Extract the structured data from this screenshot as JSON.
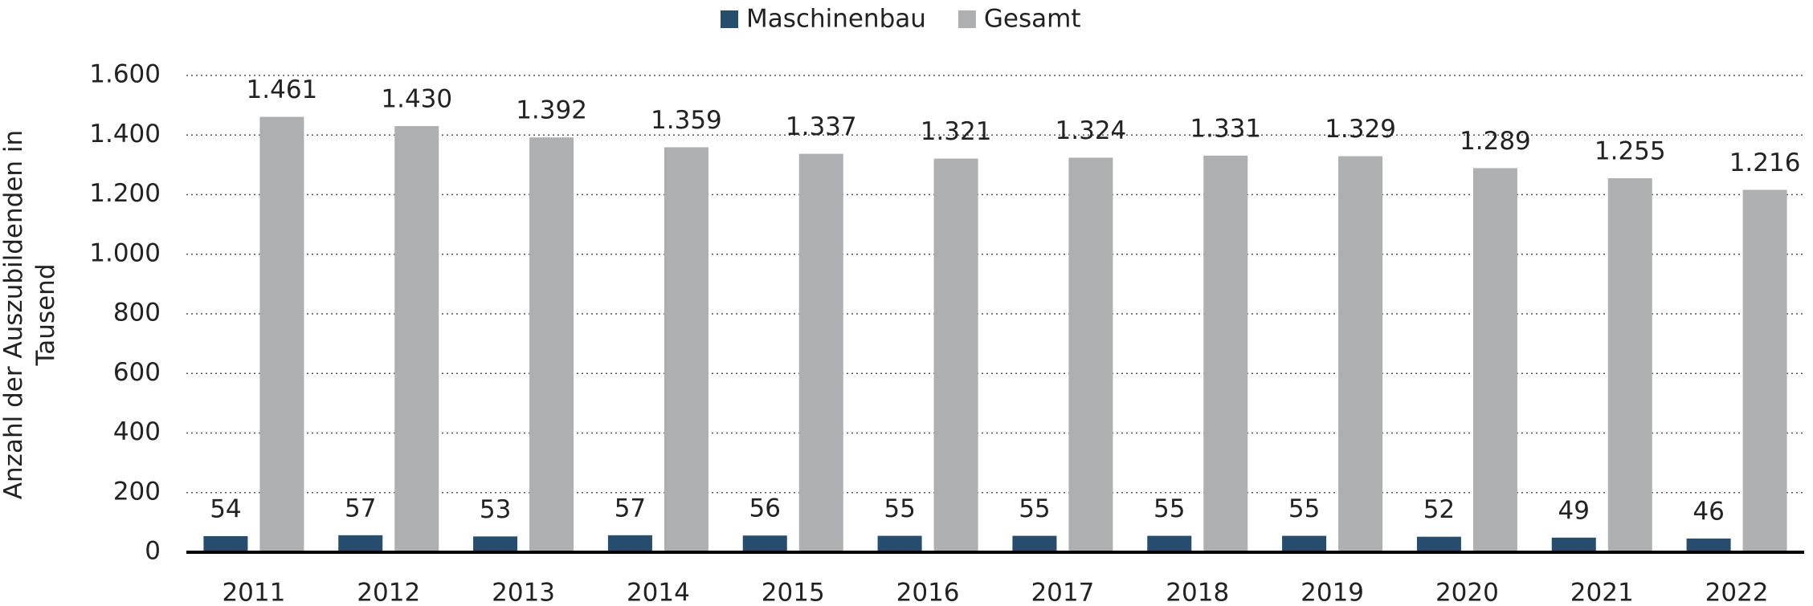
{
  "chart_data": {
    "type": "bar",
    "y_label": "Anzahl der Auszubildenden in Tausend",
    "categories": [
      "2011",
      "2012",
      "2013",
      "2014",
      "2015",
      "2016",
      "2017",
      "2018",
      "2019",
      "2020",
      "2021",
      "2022"
    ],
    "series": [
      {
        "name": "Maschinenbau",
        "color": "#264c6e",
        "values": [
          54,
          57,
          53,
          57,
          56,
          55,
          55,
          55,
          55,
          52,
          49,
          46
        ]
      },
      {
        "name": "Gesamt",
        "color": "#adafb0",
        "values": [
          1461,
          1430,
          1392,
          1359,
          1337,
          1321,
          1324,
          1331,
          1329,
          1289,
          1255,
          1216
        ],
        "value_labels": [
          "1.461",
          "1.430",
          "1.392",
          "1.359",
          "1.337",
          "1.321",
          "1.324",
          "1.331",
          "1.329",
          "1.289",
          "1.255",
          "1.216"
        ]
      }
    ],
    "ylim": [
      0,
      1600
    ],
    "yticks": [
      0,
      200,
      400,
      600,
      800,
      {
        "value": 1000,
        "label": "1.000"
      },
      {
        "value": 1200,
        "label": "1.200"
      },
      {
        "value": 1400,
        "label": "1.400"
      },
      {
        "value": 1600,
        "label": "1.600"
      }
    ],
    "grid": true
  }
}
